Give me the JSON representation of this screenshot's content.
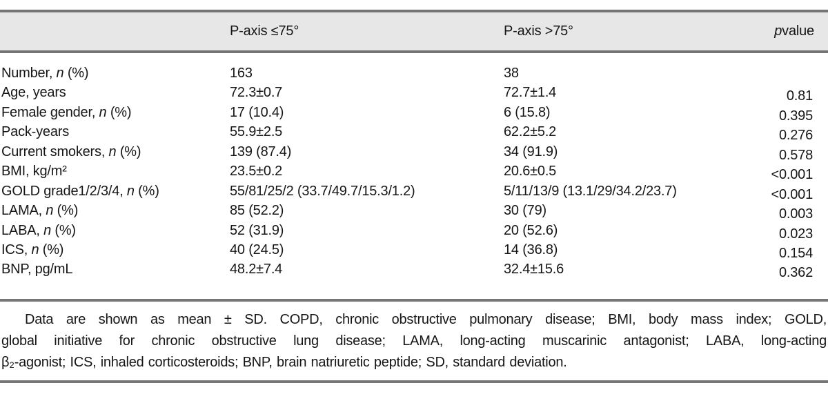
{
  "colors": {
    "header_bg": "#e7e7e7",
    "rule_gray": "#757575",
    "text": "#161616",
    "background": "#ffffff"
  },
  "table": {
    "header": {
      "col1": "",
      "col2": "P-axis ≤75°",
      "col3": "P-axis >75°",
      "col4": "|p| value"
    },
    "rows": [
      {
        "label": "Number, |n| (%)",
        "le75": "163",
        "gt75": "38",
        "p": ""
      },
      {
        "label": "Age, years",
        "le75": "72.3±0.7",
        "gt75": "72.7±1.4",
        "p": "0.81"
      },
      {
        "label": "Female gender, |n| (%)",
        "le75": "17 (10.4)",
        "gt75": "6 (15.8)",
        "p": "0.395"
      },
      {
        "label": "Pack-years",
        "le75": "55.9±2.5",
        "gt75": "62.2±5.2",
        "p": "0.276"
      },
      {
        "label": "Current smokers, |n| (%)",
        "le75": "139 (87.4)",
        "gt75": "34 (91.9)",
        "p": "0.578"
      },
      {
        "label": "BMI, kg/m²",
        "le75": "23.5±0.2",
        "gt75": "20.6±0.5",
        "p": "<0.001"
      },
      {
        "label": "GOLD grade1/2/3/4, |n| (%)",
        "le75": "55/81/25/2 (33.7/49.7/15.3/1.2)",
        "gt75": "5/11/13/9 (13.1/29/34.2/23.7)",
        "p": "<0.001"
      },
      {
        "label": "LAMA, |n| (%)",
        "le75": "85 (52.2)",
        "gt75": "30 (79)",
        "p": "0.003"
      },
      {
        "label": "LABA, |n| (%)",
        "le75": "52 (31.9)",
        "gt75": "20 (52.6)",
        "p": "0.023"
      },
      {
        "label": "ICS, |n| (%)",
        "le75": "40 (24.5)",
        "gt75": "14 (36.8)",
        "p": "0.154"
      },
      {
        "label": "BNP, pg/mL",
        "le75": "48.2±7.4",
        "gt75": "32.4±15.6",
        "p": "0.362"
      }
    ],
    "footnote_lines": [
      "Data are shown as mean ± SD. COPD, chronic obstructive pulmonary disease; BMI, body mass index; GOLD,",
      "global initiative for chronic obstructive lung disease; LAMA, long-acting muscarinic antagonist; LABA, long-acting",
      "β₂-agonist; ICS, inhaled corticosteroids; BNP, brain natriuretic peptide; SD, standard deviation."
    ]
  }
}
